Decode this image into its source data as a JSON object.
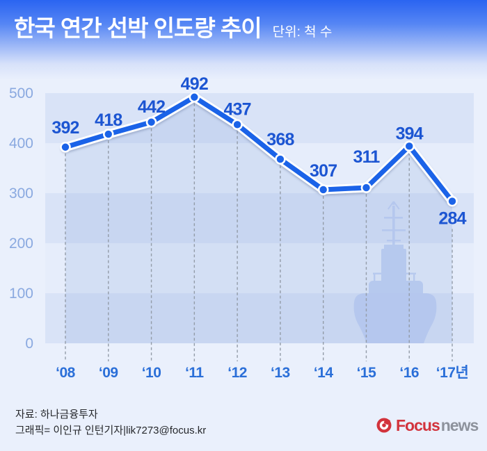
{
  "header": {
    "title": "한국 연간 선박 인도량 추이",
    "unit_label": "단위: 척 수"
  },
  "chart_data": {
    "type": "line",
    "title": "한국 연간 선박 인도량 추이",
    "unit_label": "단위: 척 수",
    "categories": [
      "‘08",
      "‘09",
      "‘10",
      "‘11",
      "‘12",
      "‘13",
      "‘14",
      "‘15",
      "‘16",
      "‘17년"
    ],
    "values": [
      392,
      418,
      442,
      492,
      437,
      368,
      307,
      311,
      394,
      284
    ],
    "ylim": [
      0,
      500
    ],
    "yticks": [
      0,
      100,
      200,
      300,
      400,
      500
    ],
    "xlabel": "",
    "ylabel": "",
    "legend": "none",
    "grid": "dashed vertical drop-lines at each point, striped horizontal bands",
    "colors": {
      "line": "#1b63e8",
      "line_casing": "#ffffff",
      "area_fill": "rgba(116,152,214,0.17)",
      "value_label": "#1c55d2",
      "x_label": "#2b6fd8",
      "y_label": "#8aa9e0",
      "band_dark": "#d9e3f7",
      "band_light": "#e6edfb"
    }
  },
  "watermark": {
    "icon": "ship-silhouette-icon"
  },
  "footer": {
    "source": "자료: 하나금융투자",
    "credit": "그래픽= 이인규 인턴기자|lik7273@focus.kr",
    "logo": {
      "icon": "focus-swirl-icon",
      "primary": "Focus",
      "secondary": "news",
      "primary_color": "#d2333c",
      "secondary_color": "#8d929c"
    }
  }
}
